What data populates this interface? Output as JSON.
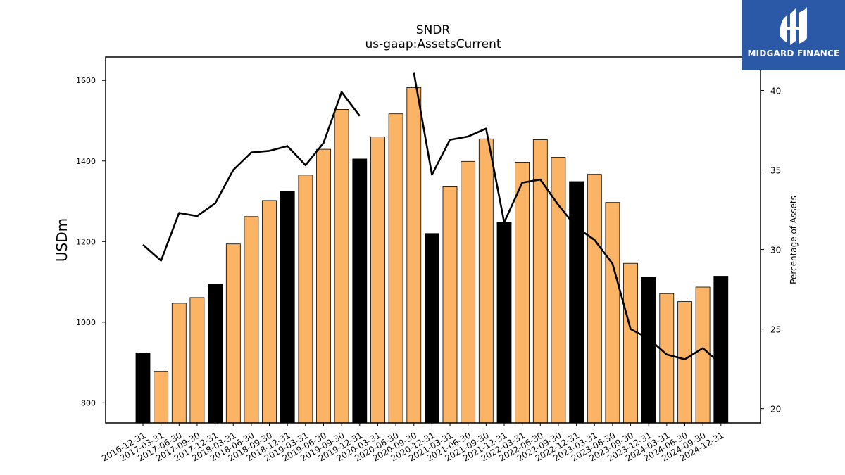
{
  "brand": {
    "name": "MIDGARD FINANCE",
    "background": "#2c58a8",
    "icon": "midgard-logo-icon"
  },
  "chart_data": {
    "type": "bar",
    "title": "SNDR",
    "subtitle": "us-gaap:AssetsCurrent",
    "ylabel": "USDm",
    "y2label": "Percentage of Assets",
    "ylim": [
      750,
      1658
    ],
    "y2lim": [
      19.1,
      42.1
    ],
    "yticks": [
      800,
      1000,
      1200,
      1400,
      1600
    ],
    "y2ticks": [
      20,
      25,
      30,
      35,
      40
    ],
    "colors": {
      "quarter_bar": "#fbb366",
      "year_end_bar": "#000000",
      "line": "#000000"
    },
    "categories": [
      "2016-12-31",
      "2017-03-31",
      "2017-06-30",
      "2017-09-30",
      "2017-12-31",
      "2018-03-31",
      "2018-06-30",
      "2018-09-30",
      "2018-12-31",
      "2019-03-31",
      "2019-06-30",
      "2019-09-30",
      "2019-12-31",
      "2020-03-31",
      "2020-06-30",
      "2020-09-30",
      "2020-12-31",
      "2021-03-31",
      "2021-06-30",
      "2021-09-30",
      "2021-12-31",
      "2022-03-31",
      "2022-06-30",
      "2022-09-30",
      "2022-12-31",
      "2023-03-31",
      "2023-06-30",
      "2023-09-30",
      "2023-12-31",
      "2024-03-31",
      "2024-06-30",
      "2024-09-30",
      "2024-12-31"
    ],
    "series": [
      {
        "type": "bar",
        "axis": "left",
        "values": [
          924,
          878,
          1047,
          1061,
          1094,
          1194,
          1262,
          1302,
          1324,
          1365,
          1429,
          1528,
          1405,
          1460,
          1517,
          1582,
          1220,
          1336,
          1399,
          1455,
          1248,
          1397,
          1453,
          1409,
          1349,
          1367,
          1297,
          1146,
          1111,
          1071,
          1051,
          1087,
          1114
        ]
      },
      {
        "type": "line",
        "axis": "right",
        "values": [
          30.3,
          29.3,
          32.3,
          32.1,
          32.9,
          35.0,
          36.1,
          36.2,
          36.5,
          35.3,
          36.7,
          39.9,
          38.4,
          null,
          null,
          41.1,
          34.7,
          36.9,
          37.1,
          37.6,
          31.7,
          34.2,
          34.4,
          32.8,
          31.4,
          30.6,
          29.1,
          25.0,
          24.4,
          23.4,
          23.1,
          23.8,
          22.8
        ]
      }
    ]
  }
}
